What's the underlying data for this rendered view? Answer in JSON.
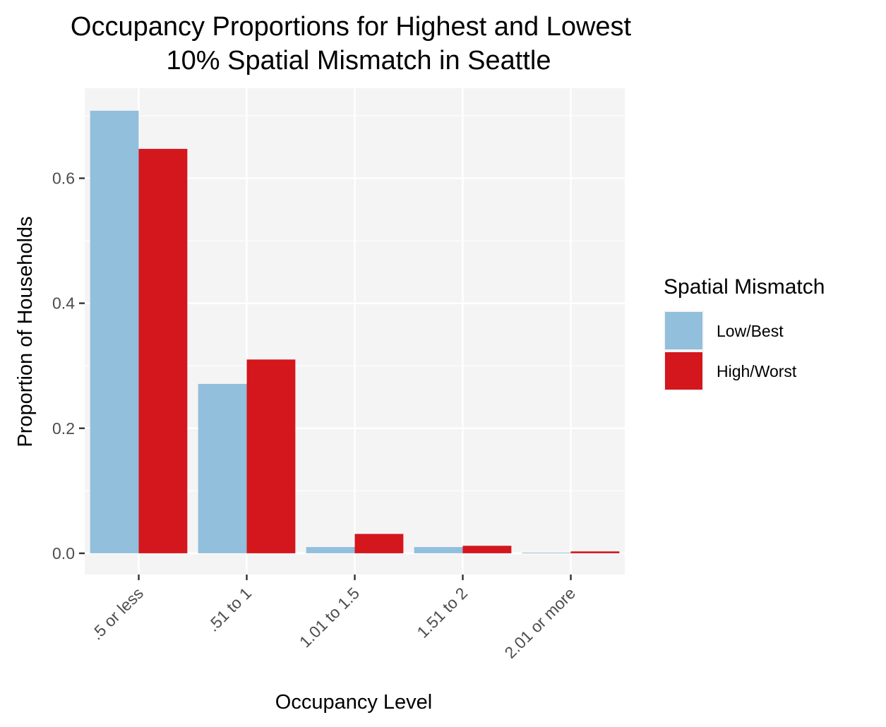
{
  "chart_data": {
    "type": "bar",
    "title": [
      "Occupancy Proportions for Highest and Lowest",
      "10% Spatial Mismatch in Seattle"
    ],
    "xlabel": "Occupancy Level",
    "ylabel": "Proportion of Households",
    "categories": [
      ".5 or less",
      ".51 to 1",
      "1.01 to 1.5",
      "1.51 to 2",
      "2.01 or more"
    ],
    "series": [
      {
        "name": "Low/Best",
        "color": "#92bfdc",
        "values": [
          0.708,
          0.271,
          0.01,
          0.01,
          0.001
        ]
      },
      {
        "name": "High/Worst",
        "color": "#d4161d",
        "values": [
          0.647,
          0.31,
          0.031,
          0.012,
          0.003
        ]
      }
    ],
    "ylim": [
      -0.034,
      0.744
    ],
    "yticks": [
      0.0,
      0.2,
      0.4,
      0.6
    ],
    "ytick_labels": [
      "0.0",
      "0.2",
      "0.4",
      "0.6"
    ],
    "legend": {
      "title": "Spatial Mismatch",
      "position": "right"
    },
    "grid": true,
    "panel_background": "#f4f4f4",
    "grid_color": "#ffffff"
  }
}
